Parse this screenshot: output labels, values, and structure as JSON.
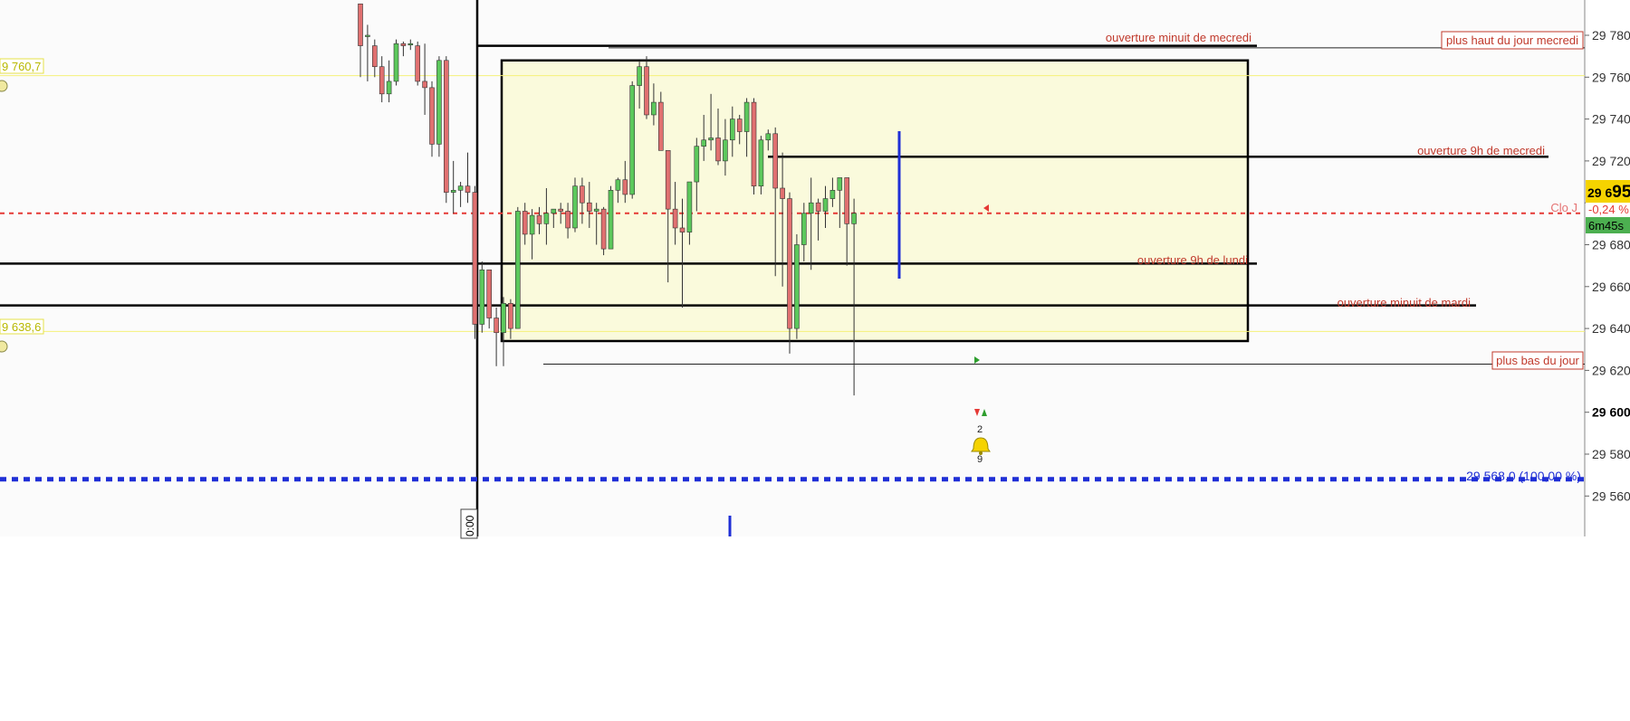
{
  "colors": {
    "background": "#fbfbfb",
    "zone_fill": "#fafadc",
    "bull": "#5cc85c",
    "bear": "#e07070",
    "annot": "#c0392b",
    "price_red": "#e53935",
    "blue": "#1f2fd6",
    "yellow_line": "#f5f07a"
  },
  "y_axis": {
    "min": 29547,
    "max": 29795,
    "ticks": [
      29780,
      29760,
      29740,
      29720,
      29700,
      29680,
      29660,
      29640,
      29620,
      29600,
      29580,
      29560
    ],
    "tick_labels": [
      "29 780",
      "29 760",
      "29 740",
      "29 720",
      "29 700",
      "29 680",
      "29 660",
      "29 640",
      "29 620",
      "29 600",
      "29 580",
      "29 560"
    ],
    "bold_tick": "29 600"
  },
  "price_badge": {
    "price_prefix": "29 6",
    "price_suffix": "95",
    "change": "-0,24 %",
    "countdown": "6m45s",
    "clo_label": "Clo J"
  },
  "left_tags": [
    "9 760,7",
    "9 638,6"
  ],
  "time_label": "0:00",
  "annotations": {
    "minuit_mercredi": "ouverture minuit de mecredi",
    "haut_jour": "plus haut du jour mecredi",
    "ouverture_9h_mercredi": "ouverture 9h  de mecredi",
    "ouverture_9h_lundi": "ouverture 9h de lundi",
    "minuit_mardi": "ouverture minuit de mardi",
    "bas_jour": "plus bas du jour",
    "fib_level": "29 568,0 (100,00 %)"
  },
  "marker_counts": [
    "2",
    "9"
  ],
  "chart_data": {
    "type": "candlestick",
    "levels": {
      "zone_top": 29768,
      "zone_bottom": 29634,
      "ouverture_minuit_mercredi": 29775,
      "plus_haut_jour": 29774,
      "ouverture_9h_mercredi": 29722,
      "ouverture_9h_lundi": 29671,
      "ouverture_minuit_mardi": 29651,
      "plus_bas_jour": 29623,
      "close_reference": 29695,
      "fib_100": 29568,
      "tag_high": 29760.7,
      "tag_low": 29638.6
    },
    "candles": [
      [
        29795,
        29795,
        29760,
        29775
      ],
      [
        29780,
        29785,
        29758,
        29780
      ],
      [
        29775,
        29778,
        29760,
        29765
      ],
      [
        29765,
        29770,
        29748,
        29752
      ],
      [
        29752,
        29768,
        29748,
        29758
      ],
      [
        29758,
        29778,
        29756,
        29776
      ],
      [
        29776,
        29777,
        29770,
        29775
      ],
      [
        29776,
        29778,
        29773,
        29776
      ],
      [
        29775,
        29777,
        29756,
        29758
      ],
      [
        29758,
        29776,
        29742,
        29755
      ],
      [
        29755,
        29758,
        29722,
        29728
      ],
      [
        29728,
        29770,
        29722,
        29768
      ],
      [
        29768,
        29770,
        29700,
        29705
      ],
      [
        29705,
        29720,
        29695,
        29706
      ],
      [
        29706,
        29710,
        29698,
        29708
      ],
      [
        29708,
        29724,
        29700,
        29705
      ],
      [
        29705,
        29708,
        29635,
        29642
      ],
      [
        29642,
        29672,
        29638,
        29668
      ],
      [
        29668,
        29668,
        29640,
        29645
      ],
      [
        29645,
        29650,
        29622,
        29638
      ],
      [
        29638,
        29655,
        29622,
        29652
      ],
      [
        29652,
        29654,
        29635,
        29640
      ],
      [
        29640,
        29698,
        29640,
        29696
      ],
      [
        29696,
        29700,
        29680,
        29685
      ],
      [
        29685,
        29697,
        29673,
        29694
      ],
      [
        29694,
        29698,
        29685,
        29690
      ],
      [
        29690,
        29707,
        29680,
        29695
      ],
      [
        29695,
        29697,
        29688,
        29697
      ],
      [
        29697,
        29700,
        29690,
        29696
      ],
      [
        29696,
        29700,
        29683,
        29688
      ],
      [
        29688,
        29712,
        29686,
        29708
      ],
      [
        29708,
        29712,
        29690,
        29700
      ],
      [
        29700,
        29710,
        29688,
        29696
      ],
      [
        29696,
        29700,
        29680,
        29697
      ],
      [
        29697,
        29698,
        29675,
        29678
      ],
      [
        29678,
        29708,
        29678,
        29706
      ],
      [
        29706,
        29712,
        29700,
        29711
      ],
      [
        29711,
        29720,
        29700,
        29704
      ],
      [
        29704,
        29758,
        29702,
        29756
      ],
      [
        29756,
        29768,
        29745,
        29765
      ],
      [
        29765,
        29770,
        29740,
        29742
      ],
      [
        29742,
        29757,
        29737,
        29748
      ],
      [
        29748,
        29753,
        29725,
        29725
      ],
      [
        29725,
        29725,
        29662,
        29697
      ],
      [
        29697,
        29710,
        29680,
        29688
      ],
      [
        29688,
        29702,
        29650,
        29686
      ],
      [
        29686,
        29710,
        29680,
        29710
      ],
      [
        29710,
        29731,
        29696,
        29727
      ],
      [
        29727,
        29742,
        29720,
        29730
      ],
      [
        29730,
        29752,
        29725,
        29731
      ],
      [
        29731,
        29745,
        29718,
        29720
      ],
      [
        29720,
        29740,
        29713,
        29730
      ],
      [
        29730,
        29746,
        29722,
        29740
      ],
      [
        29740,
        29742,
        29728,
        29734
      ],
      [
        29734,
        29750,
        29722,
        29748
      ],
      [
        29748,
        29750,
        29704,
        29708
      ],
      [
        29708,
        29732,
        29704,
        29730
      ],
      [
        29730,
        29735,
        29725,
        29733
      ],
      [
        29733,
        29736,
        29665,
        29707
      ],
      [
        29707,
        29724,
        29660,
        29702
      ],
      [
        29702,
        29705,
        29628,
        29640
      ],
      [
        29640,
        29685,
        29635,
        29680
      ],
      [
        29680,
        29700,
        29672,
        29695
      ],
      [
        29695,
        29712,
        29668,
        29700
      ],
      [
        29700,
        29702,
        29682,
        29696
      ],
      [
        29696,
        29708,
        29688,
        29702
      ],
      [
        29702,
        29712,
        29698,
        29706
      ],
      [
        29706,
        29710,
        29688,
        29712
      ],
      [
        29712,
        29710,
        29670,
        29690
      ],
      [
        29690,
        29702,
        29608,
        29695
      ]
    ],
    "x_start": 398,
    "x_step": 7.9
  }
}
